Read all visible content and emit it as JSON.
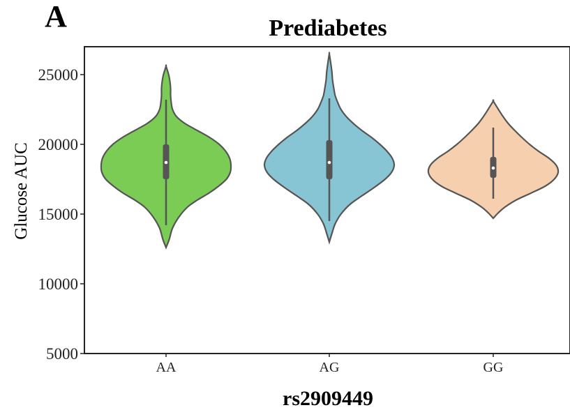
{
  "panel_label": "A",
  "chart_data": {
    "type": "violin",
    "title": "Prediabetes",
    "xlabel": "rs2909449",
    "ylabel": "Glucose AUC",
    "ylim": [
      5000,
      27000
    ],
    "yticks": [
      5000,
      10000,
      15000,
      20000,
      25000
    ],
    "categories": [
      "AA",
      "AG",
      "GG"
    ],
    "colors": [
      "#7acc55",
      "#88c5d4",
      "#f6cfae"
    ],
    "outline_color": "#555555",
    "grid": false,
    "series": [
      {
        "category": "AA",
        "min": 12600,
        "max": 25600,
        "q1": 17500,
        "median": 18700,
        "q3": 20000,
        "whisker_low": 14200,
        "whisker_high": 23200,
        "profile": [
          [
            12600,
            0.0
          ],
          [
            13200,
            0.05
          ],
          [
            14000,
            0.1
          ],
          [
            14800,
            0.2
          ],
          [
            15500,
            0.33
          ],
          [
            16000,
            0.48
          ],
          [
            16500,
            0.66
          ],
          [
            17000,
            0.81
          ],
          [
            17500,
            0.93
          ],
          [
            18000,
            0.99
          ],
          [
            18500,
            1.0
          ],
          [
            19000,
            0.98
          ],
          [
            19500,
            0.92
          ],
          [
            20000,
            0.82
          ],
          [
            20500,
            0.67
          ],
          [
            21000,
            0.48
          ],
          [
            21500,
            0.29
          ],
          [
            22000,
            0.16
          ],
          [
            22500,
            0.1
          ],
          [
            23000,
            0.08
          ],
          [
            23500,
            0.07
          ],
          [
            24000,
            0.07
          ],
          [
            24500,
            0.06
          ],
          [
            25000,
            0.04
          ],
          [
            25600,
            0.0
          ]
        ]
      },
      {
        "category": "AG",
        "min": 13000,
        "max": 26500,
        "q1": 17500,
        "median": 18700,
        "q3": 20300,
        "whisker_low": 14500,
        "whisker_high": 23300,
        "profile": [
          [
            13000,
            0.0
          ],
          [
            13600,
            0.04
          ],
          [
            14300,
            0.09
          ],
          [
            15000,
            0.18
          ],
          [
            15700,
            0.32
          ],
          [
            16300,
            0.5
          ],
          [
            16900,
            0.69
          ],
          [
            17500,
            0.86
          ],
          [
            18000,
            0.96
          ],
          [
            18500,
            1.0
          ],
          [
            19000,
            0.97
          ],
          [
            19500,
            0.89
          ],
          [
            20000,
            0.78
          ],
          [
            20500,
            0.65
          ],
          [
            21000,
            0.5
          ],
          [
            21500,
            0.37
          ],
          [
            22000,
            0.26
          ],
          [
            22500,
            0.18
          ],
          [
            23000,
            0.13
          ],
          [
            23500,
            0.09
          ],
          [
            24000,
            0.07
          ],
          [
            24600,
            0.05
          ],
          [
            25200,
            0.04
          ],
          [
            25900,
            0.02
          ],
          [
            26500,
            0.0
          ]
        ]
      },
      {
        "category": "GG",
        "min": 14700,
        "max": 23100,
        "q1": 17600,
        "median": 18300,
        "q3": 19100,
        "whisker_low": 16100,
        "whisker_high": 21200,
        "profile": [
          [
            14700,
            0.0
          ],
          [
            15100,
            0.08
          ],
          [
            15500,
            0.18
          ],
          [
            16000,
            0.35
          ],
          [
            16500,
            0.58
          ],
          [
            17000,
            0.8
          ],
          [
            17500,
            0.94
          ],
          [
            18000,
            1.0
          ],
          [
            18500,
            0.97
          ],
          [
            19000,
            0.86
          ],
          [
            19500,
            0.7
          ],
          [
            20000,
            0.56
          ],
          [
            20500,
            0.44
          ],
          [
            21000,
            0.33
          ],
          [
            21500,
            0.23
          ],
          [
            22000,
            0.15
          ],
          [
            22500,
            0.08
          ],
          [
            23100,
            0.0
          ]
        ]
      }
    ]
  }
}
